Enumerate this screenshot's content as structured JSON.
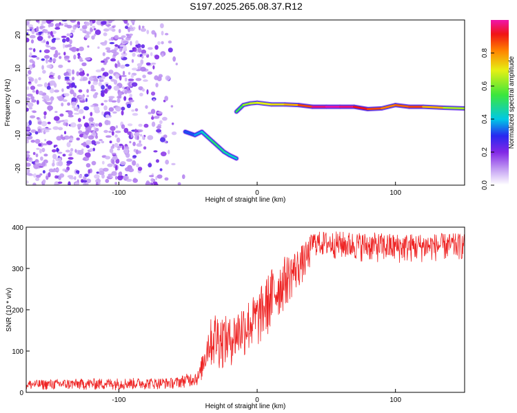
{
  "title": "S197.2025.265.08.37.R12",
  "colors": {
    "snr_line": "#ee2222",
    "plot_frame": "#000000",
    "background": "#ffffff"
  },
  "chart_data": [
    {
      "type": "heatmap",
      "name": "spectrogram",
      "xlabel": "Height of straight line (km)",
      "ylabel": "Frequency (Hz)",
      "xlim": [
        -167,
        150
      ],
      "ylim": [
        -25,
        24.5
      ],
      "xticks": [
        -100,
        0,
        100
      ],
      "xtick_labels": [
        "-100",
        "0",
        "100"
      ],
      "yticks": [
        20,
        10,
        0,
        -10,
        -20
      ],
      "ytick_labels": [
        "20",
        "10",
        "0",
        "-10",
        "-20"
      ],
      "noise_region_km": [
        -167,
        -52
      ],
      "noise_level": 0.2,
      "emission_trace": [
        {
          "x": -52,
          "y": -9,
          "a": 0.3
        },
        {
          "x": -45,
          "y": -10,
          "a": 0.35
        },
        {
          "x": -40,
          "y": -9,
          "a": 0.4
        },
        {
          "x": -36,
          "y": -10.5,
          "a": 0.45
        },
        {
          "x": -32,
          "y": -12,
          "a": 0.5
        },
        {
          "x": -28,
          "y": -13.5,
          "a": 0.5
        },
        {
          "x": -24,
          "y": -15,
          "a": 0.45
        },
        {
          "x": -20,
          "y": -16,
          "a": 0.45
        },
        {
          "x": -15,
          "y": -17,
          "a": 0.4
        }
      ],
      "carrier_trace": [
        {
          "x": -15,
          "y": -3,
          "a": 0.45
        },
        {
          "x": -10,
          "y": -1,
          "a": 0.6
        },
        {
          "x": -5,
          "y": -0.5,
          "a": 0.65
        },
        {
          "x": 0,
          "y": -0.3,
          "a": 0.7
        },
        {
          "x": 10,
          "y": -0.8,
          "a": 0.7
        },
        {
          "x": 20,
          "y": -0.8,
          "a": 0.75
        },
        {
          "x": 30,
          "y": -1,
          "a": 0.8
        },
        {
          "x": 40,
          "y": -1.5,
          "a": 0.95
        },
        {
          "x": 50,
          "y": -1.5,
          "a": 1.0
        },
        {
          "x": 60,
          "y": -1.5,
          "a": 1.0
        },
        {
          "x": 70,
          "y": -1.5,
          "a": 0.95
        },
        {
          "x": 80,
          "y": -2.2,
          "a": 0.9
        },
        {
          "x": 90,
          "y": -2,
          "a": 0.85
        },
        {
          "x": 100,
          "y": -1,
          "a": 0.8
        },
        {
          "x": 110,
          "y": -1.5,
          "a": 0.9
        },
        {
          "x": 120,
          "y": -1.5,
          "a": 0.85
        },
        {
          "x": 135,
          "y": -1.8,
          "a": 0.7
        },
        {
          "x": 150,
          "y": -2,
          "a": 0.6
        }
      ]
    },
    {
      "type": "line",
      "name": "snr",
      "xlabel": "Height of straight line (km)",
      "ylabel": "SNR (10 * v/v)",
      "xlim": [
        -167,
        150
      ],
      "ylim": [
        0,
        400
      ],
      "xticks": [
        -100,
        0,
        100
      ],
      "xtick_labels": [
        "-100",
        "0",
        "100"
      ],
      "yticks": [
        0,
        100,
        200,
        300,
        400
      ],
      "ytick_labels": [
        "0",
        "100",
        "200",
        "300",
        "400"
      ],
      "envelope": {
        "x": [
          -167,
          -100,
          -60,
          -42,
          -35,
          -30,
          -20,
          -10,
          0,
          10,
          20,
          30,
          37,
          40,
          60,
          100,
          150
        ],
        "low": [
          5,
          5,
          8,
          15,
          60,
          50,
          60,
          80,
          100,
          140,
          200,
          250,
          280,
          330,
          320,
          310,
          320
        ],
        "high": [
          30,
          35,
          35,
          55,
          170,
          200,
          180,
          220,
          240,
          300,
          330,
          350,
          370,
          390,
          390,
          385,
          385
        ]
      }
    }
  ],
  "colorbar": {
    "label": "Normalized spectral amplitude",
    "range": [
      0,
      1
    ],
    "ticks": [
      0.0,
      0.2,
      0.4,
      0.6,
      0.8
    ],
    "tick_labels": [
      "0.0",
      "0.2",
      "0.4",
      "0.6",
      "0.8"
    ]
  }
}
